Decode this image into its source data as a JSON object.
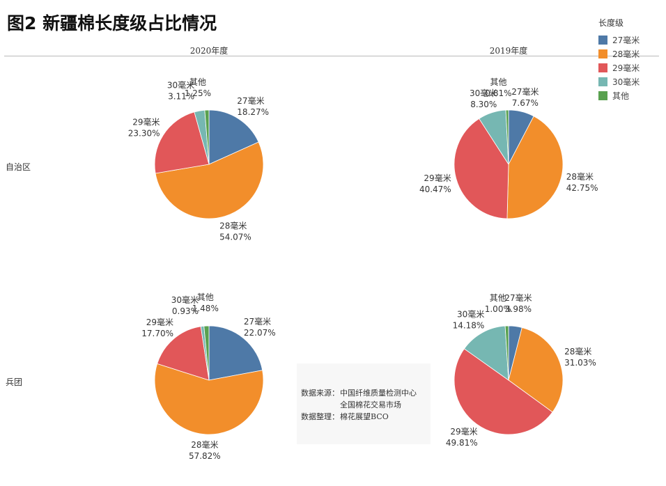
{
  "title": "图2 新疆棉长度级占比情况",
  "legend": {
    "title": "长度级",
    "items": [
      {
        "label": "27毫米",
        "color": "#4e79a7"
      },
      {
        "label": "28毫米",
        "color": "#f28e2b"
      },
      {
        "label": "29毫米",
        "color": "#e15759"
      },
      {
        "label": "30毫米",
        "color": "#76b7b2"
      },
      {
        "label": "其他",
        "color": "#59a14f"
      }
    ]
  },
  "columns": [
    "2020年度",
    "2019年度"
  ],
  "rows": [
    "自治区",
    "兵团"
  ],
  "source": {
    "line1_label": "数据来源：",
    "line1_value": "中国纤维质量检测中心",
    "line2_value": "全国棉花交易市场",
    "line3_label": "数据整理：",
    "line3_value": "棉花展望BCO"
  },
  "chart_data": [
    {
      "type": "pie",
      "row": "自治区",
      "column": "2020年度",
      "slices": [
        {
          "label": "27毫米",
          "value": 18.27,
          "value_text": "18.27%"
        },
        {
          "label": "28毫米",
          "value": 54.07,
          "value_text": "54.07%"
        },
        {
          "label": "29毫米",
          "value": 23.3,
          "value_text": "23.30%"
        },
        {
          "label": "30毫米",
          "value": 3.11,
          "value_text": "3.11%"
        },
        {
          "label": "其他",
          "value": 1.25,
          "value_text": "1.25%"
        }
      ]
    },
    {
      "type": "pie",
      "row": "自治区",
      "column": "2019年度",
      "slices": [
        {
          "label": "27毫米",
          "value": 7.67,
          "value_text": "7.67%"
        },
        {
          "label": "28毫米",
          "value": 42.75,
          "value_text": "42.75%"
        },
        {
          "label": "29毫米",
          "value": 40.47,
          "value_text": "40.47%"
        },
        {
          "label": "30毫米",
          "value": 8.3,
          "value_text": "8.30%"
        },
        {
          "label": "其他",
          "value": 0.81,
          "value_text": "0.81%"
        }
      ]
    },
    {
      "type": "pie",
      "row": "兵团",
      "column": "2020年度",
      "slices": [
        {
          "label": "27毫米",
          "value": 22.07,
          "value_text": "22.07%"
        },
        {
          "label": "28毫米",
          "value": 57.82,
          "value_text": "57.82%"
        },
        {
          "label": "29毫米",
          "value": 17.7,
          "value_text": "17.70%"
        },
        {
          "label": "30毫米",
          "value": 0.93,
          "value_text": "0.93%"
        },
        {
          "label": "其他",
          "value": 1.48,
          "value_text": "1.48%"
        }
      ]
    },
    {
      "type": "pie",
      "row": "兵团",
      "column": "2019年度",
      "slices": [
        {
          "label": "27毫米",
          "value": 3.98,
          "value_text": "3.98%"
        },
        {
          "label": "28毫米",
          "value": 31.03,
          "value_text": "31.03%"
        },
        {
          "label": "29毫米",
          "value": 49.81,
          "value_text": "49.81%"
        },
        {
          "label": "30毫米",
          "value": 14.18,
          "value_text": "14.18%"
        },
        {
          "label": "其他",
          "value": 1.0,
          "value_text": "1.00%"
        }
      ]
    }
  ]
}
